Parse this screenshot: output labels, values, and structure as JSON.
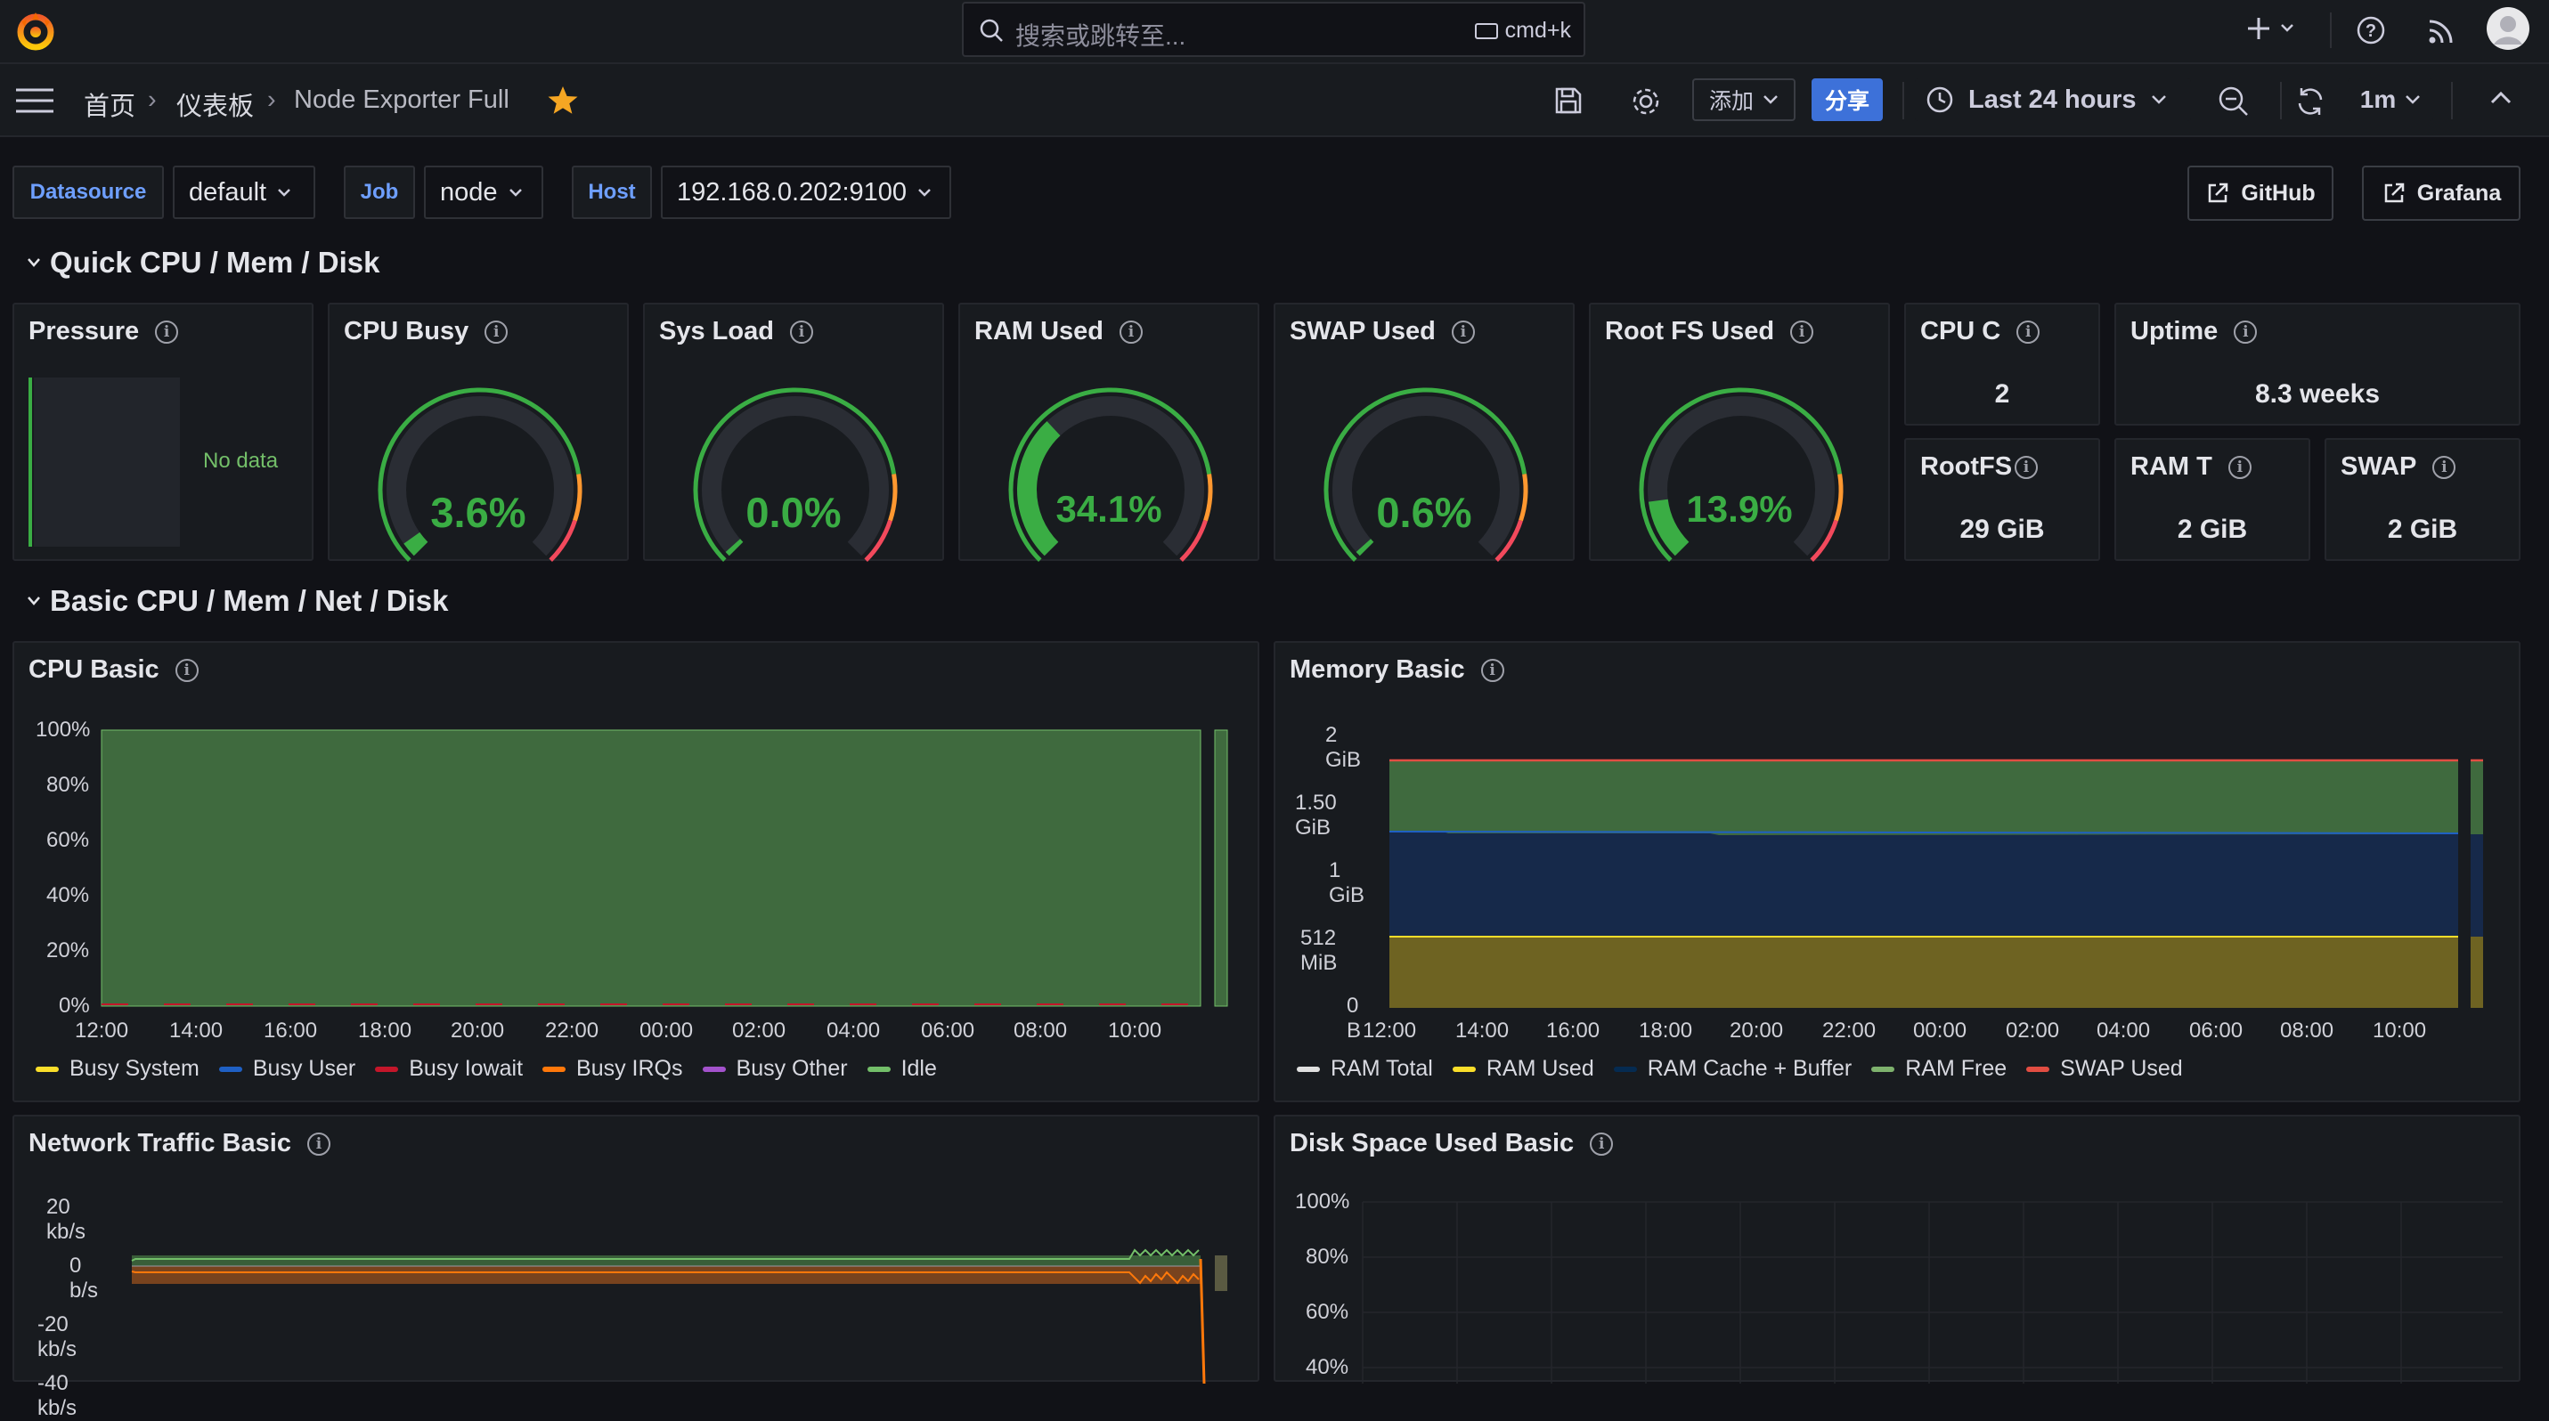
{
  "topbar": {
    "search_placeholder": "搜索或跳转至...",
    "search_shortcut": "cmd+k"
  },
  "breadcrumb": [
    "首页",
    "仪表板",
    "Node Exporter Full"
  ],
  "toolbar": {
    "add_label": "添加",
    "share_label": "分享",
    "time_range": "Last 24 hours",
    "refresh_interval": "1m"
  },
  "variables": [
    {
      "label": "Datasource",
      "value": "default"
    },
    {
      "label": "Job",
      "value": "node"
    },
    {
      "label": "Host",
      "value": "192.168.0.202:9100"
    }
  ],
  "links": [
    "GitHub",
    "Grafana"
  ],
  "rows": {
    "quick": "Quick CPU / Mem / Disk",
    "basic": "Basic CPU / Mem / Net / Disk"
  },
  "quick_panels": {
    "pressure": {
      "title": "Pressure",
      "nodata": "No data"
    },
    "gauges": [
      {
        "title": "CPU Busy",
        "value": "3.6%",
        "percent": 3.6
      },
      {
        "title": "Sys Load",
        "value": "0.0%",
        "percent": 0.0
      },
      {
        "title": "RAM Used",
        "value": "34.1%",
        "percent": 34.1
      },
      {
        "title": "SWAP Used",
        "value": "0.6%",
        "percent": 0.6
      },
      {
        "title": "Root FS Used",
        "value": "13.9%",
        "percent": 13.9
      }
    ],
    "stats": [
      {
        "title": "CPU C",
        "value": "2"
      },
      {
        "title": "Uptime",
        "value": "8.3 weeks"
      },
      {
        "title": "RootFS",
        "value": "29 GiB"
      },
      {
        "title": "RAM T",
        "value": "2 GiB"
      },
      {
        "title": "SWAP",
        "value": "2 GiB"
      }
    ]
  },
  "cpu_basic": {
    "title": "CPU Basic",
    "yticks": [
      "100%",
      "80%",
      "60%",
      "40%",
      "20%",
      "0%"
    ],
    "xticks": [
      "12:00",
      "14:00",
      "16:00",
      "18:00",
      "20:00",
      "22:00",
      "00:00",
      "02:00",
      "04:00",
      "06:00",
      "08:00",
      "10:00"
    ],
    "legend": [
      {
        "name": "Busy System",
        "color": "#fade2a"
      },
      {
        "name": "Busy User",
        "color": "#1f60c4"
      },
      {
        "name": "Busy Iowait",
        "color": "#c4162a"
      },
      {
        "name": "Busy IRQs",
        "color": "#ff780a"
      },
      {
        "name": "Busy Other",
        "color": "#a352cc"
      },
      {
        "name": "Idle",
        "color": "#73bf69"
      }
    ]
  },
  "memory_basic": {
    "title": "Memory Basic",
    "yticks": [
      "2 GiB",
      "1.50 GiB",
      "1 GiB",
      "512 MiB",
      "0 B"
    ],
    "xticks": [
      "12:00",
      "14:00",
      "16:00",
      "18:00",
      "20:00",
      "22:00",
      "00:00",
      "02:00",
      "04:00",
      "06:00",
      "08:00",
      "10:00"
    ],
    "legend": [
      {
        "name": "RAM Total",
        "color": "#e0e0e0"
      },
      {
        "name": "RAM Used",
        "color": "#fade2a"
      },
      {
        "name": "RAM Cache + Buffer",
        "color": "#052b51"
      },
      {
        "name": "RAM Free",
        "color": "#7eb26d"
      },
      {
        "name": "SWAP Used",
        "color": "#e24d42"
      }
    ]
  },
  "network_basic": {
    "title": "Network Traffic Basic",
    "yticks": [
      "20 kb/s",
      "0 b/s",
      "-20 kb/s",
      "-40 kb/s"
    ]
  },
  "disk_basic": {
    "title": "Disk Space Used Basic",
    "yticks": [
      "100%",
      "80%",
      "60%",
      "40%"
    ]
  }
}
